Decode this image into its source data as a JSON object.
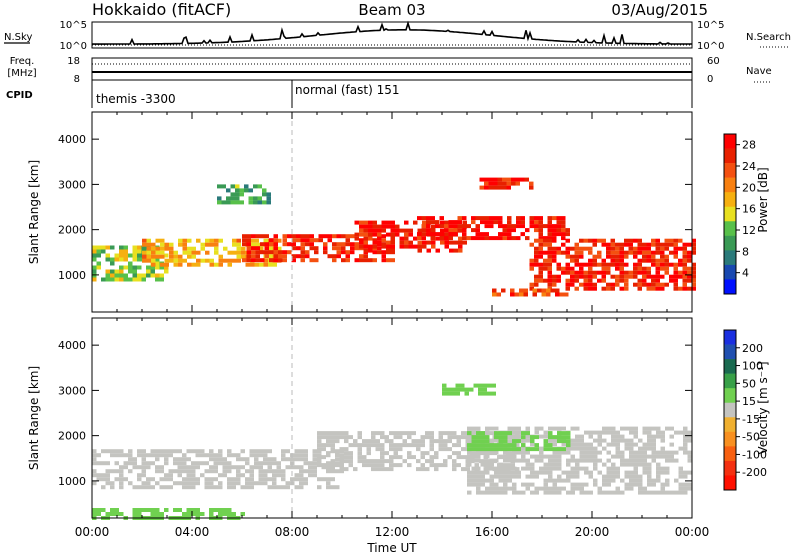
{
  "header": {
    "station": "Hokkaido (fitACF)",
    "beam": "Beam 03",
    "date": "03/Aug/2015"
  },
  "top_panel": {
    "nsky_label": "N.Sky",
    "nsearch_label": "N.Search",
    "noise_ticks": [
      "10^5",
      "10^0"
    ],
    "freq_label_1": "Freq.",
    "freq_label_2": "[MHz]",
    "freq_ticks": [
      "18",
      "8"
    ],
    "nave_label": "Nave",
    "nave_ticks": [
      "60",
      "0"
    ],
    "cpid_label": "CPID",
    "cpid_entries": [
      {
        "start_hour": 0,
        "text": "themis -3300"
      },
      {
        "start_hour": 8,
        "text": "normal (fast) 151"
      }
    ]
  },
  "colors": {
    "power_scale": [
      "#0010ff",
      "#1848b0",
      "#2a7a7a",
      "#3a9a55",
      "#58c04a",
      "#e8e020",
      "#f6b010",
      "#f88010",
      "#f45010",
      "#e82000",
      "#ff0000"
    ],
    "velocity_scale": [
      "#1a2fe0",
      "#2050b0",
      "#1a6a50",
      "#38a048",
      "#70d050",
      "#c4c4c0",
      "#f0b030",
      "#f89020",
      "#f86010",
      "#f43010",
      "#ff1000"
    ],
    "grey": "#c4c4c0"
  },
  "chart_data": [
    {
      "type": "heatmap",
      "title": "",
      "xlabel": "Time UT",
      "ylabel": "Slant Range [km]",
      "xlim": [
        0,
        24
      ],
      "ylim": [
        180,
        4600
      ],
      "x_ticks": [
        "00:00",
        "04:00",
        "08:00",
        "12:00",
        "16:00",
        "20:00",
        "00:00"
      ],
      "y_ticks": [
        1000,
        2000,
        3000,
        4000
      ],
      "colorbar": {
        "label": "Power [dB]",
        "ticks": [
          4,
          8,
          12,
          16,
          20,
          24,
          28
        ],
        "range": [
          0,
          30
        ]
      },
      "regions": [
        {
          "t": [
            0,
            3
          ],
          "r": [
            900,
            1650
          ],
          "value": 14
        },
        {
          "t": [
            2,
            7.5
          ],
          "r": [
            1200,
            1800
          ],
          "value": 18
        },
        {
          "t": [
            6,
            12
          ],
          "r": [
            1300,
            1900
          ],
          "value": 26
        },
        {
          "t": [
            10.5,
            15
          ],
          "r": [
            1500,
            2200
          ],
          "value": 27
        },
        {
          "t": [
            13,
            19
          ],
          "r": [
            1800,
            2300
          ],
          "value": 28
        },
        {
          "t": [
            17.5,
            24
          ],
          "r": [
            700,
            1800
          ],
          "value": 26
        },
        {
          "t": [
            16,
            19
          ],
          "r": [
            550,
            700
          ],
          "value": 25
        },
        {
          "t": [
            15.5,
            17.5
          ],
          "r": [
            2950,
            3150
          ],
          "value": 27
        },
        {
          "t": [
            5,
            7
          ],
          "r": [
            2600,
            3000
          ],
          "value": 10
        }
      ]
    },
    {
      "type": "heatmap",
      "title": "",
      "xlabel": "Time UT",
      "ylabel": "Slant Range [km]",
      "xlim": [
        0,
        24
      ],
      "ylim": [
        180,
        4600
      ],
      "x_ticks": [
        "00:00",
        "04:00",
        "08:00",
        "12:00",
        "16:00",
        "20:00",
        "00:00"
      ],
      "y_ticks": [
        1000,
        2000,
        3000,
        4000
      ],
      "colorbar": {
        "label": "Velocity [m s⁻¹]",
        "ticks": [
          200,
          100,
          50,
          15,
          -15,
          -50,
          -100,
          -200
        ],
        "range": [
          -250,
          250
        ]
      },
      "regions": [
        {
          "t": [
            0,
            10
          ],
          "r": [
            900,
            1700
          ],
          "value": 0
        },
        {
          "t": [
            9,
            17
          ],
          "r": [
            1300,
            2100
          ],
          "value": 0
        },
        {
          "t": [
            15,
            24
          ],
          "r": [
            700,
            2200
          ],
          "value": 0
        },
        {
          "t": [
            14,
            16
          ],
          "r": [
            2900,
            3150
          ],
          "value": 40
        },
        {
          "t": [
            15,
            19
          ],
          "r": [
            1700,
            2100
          ],
          "value": 45
        },
        {
          "t": [
            0,
            6
          ],
          "r": [
            200,
            400
          ],
          "value": 45
        }
      ]
    }
  ]
}
